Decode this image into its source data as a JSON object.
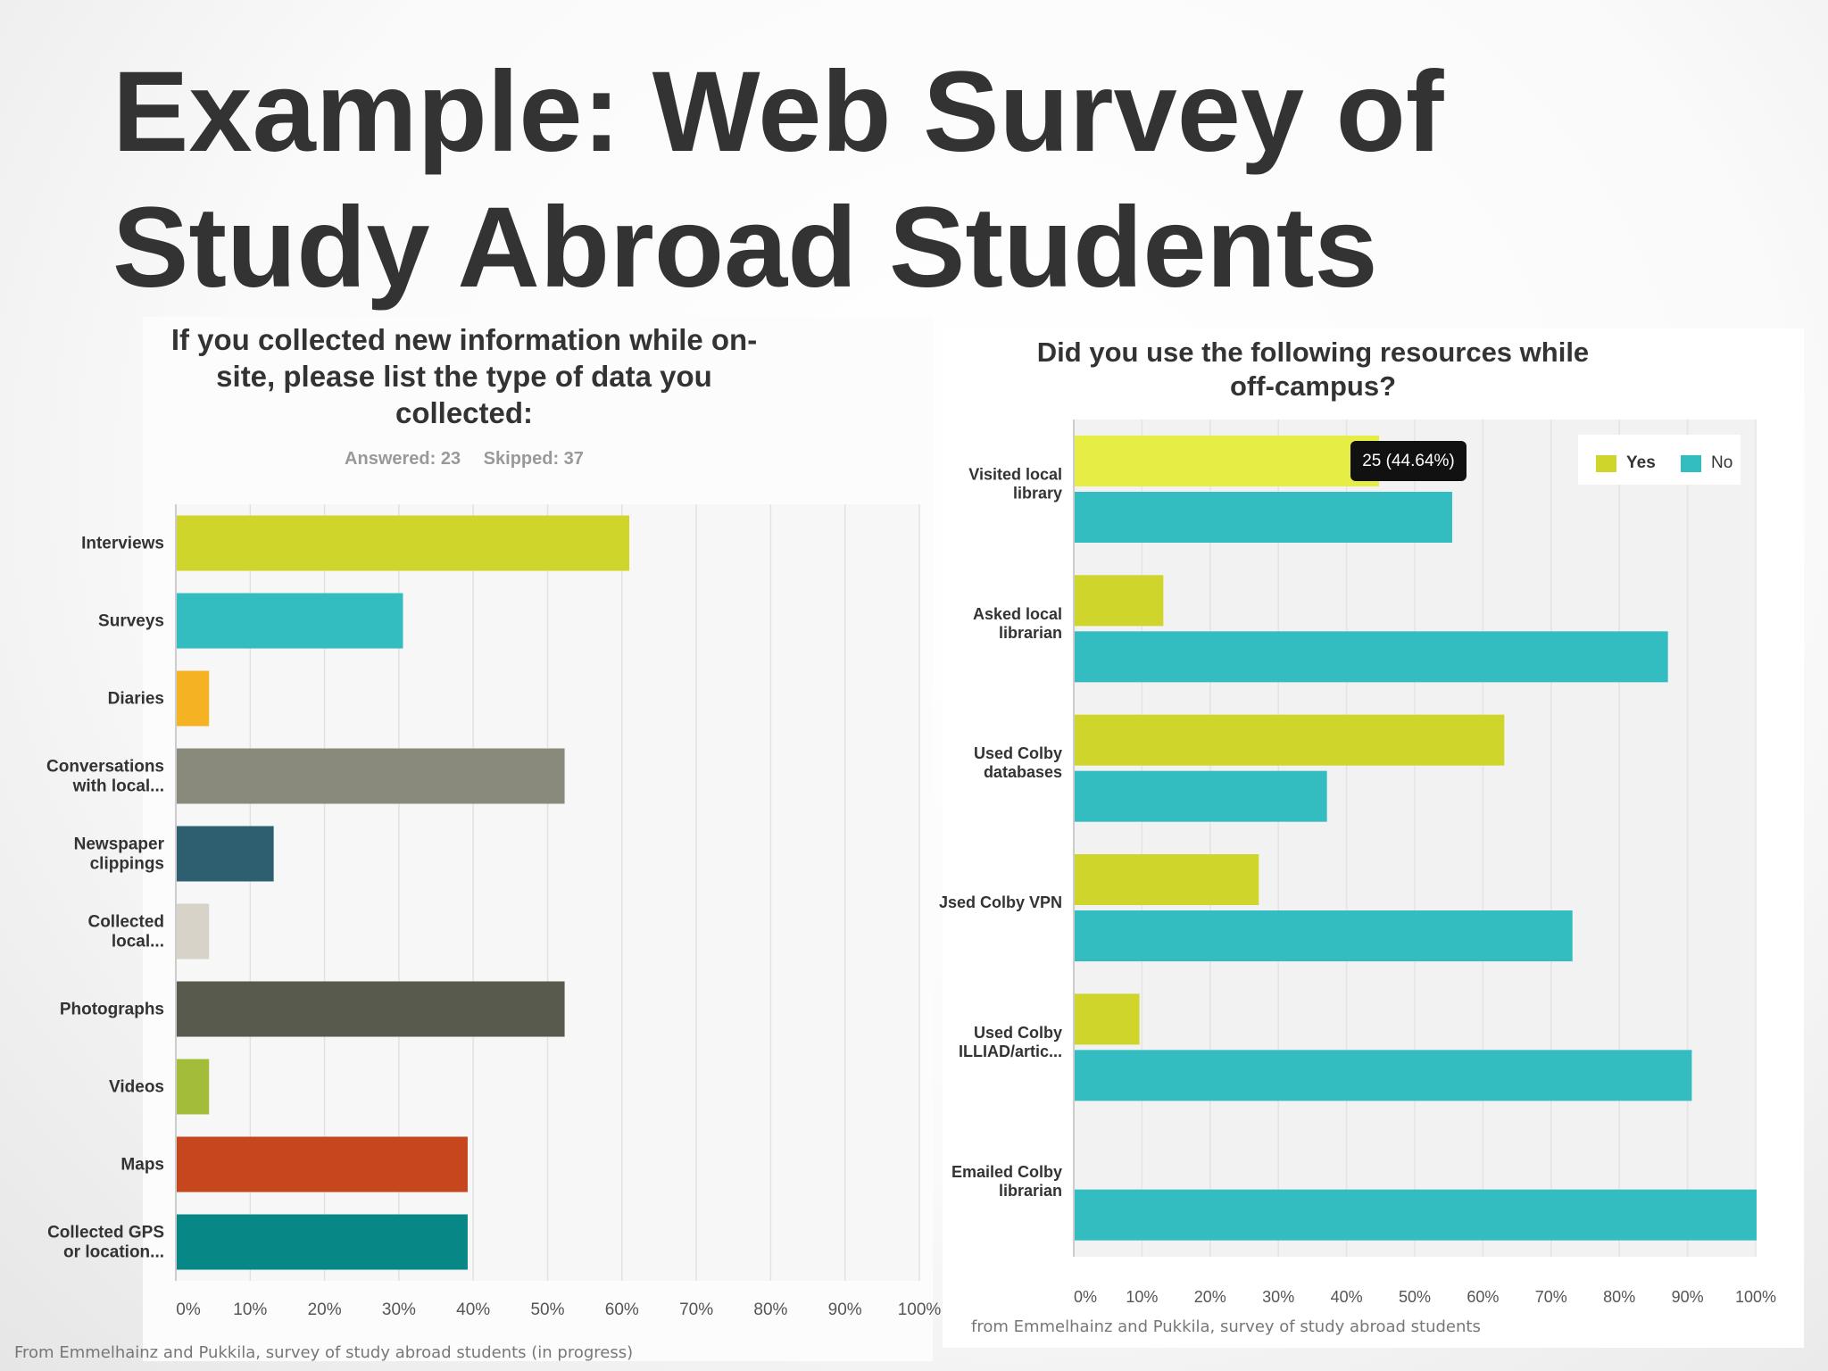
{
  "slide": {
    "title_line1": "Example: Web Survey of",
    "title_line2": "Study Abroad Students"
  },
  "left_chart": {
    "title_line1": "If you collected new information while on-",
    "title_line2": "site, please list the type of data you",
    "title_line3": "collected:",
    "answered": "Answered: 23",
    "skipped": "Skipped: 37",
    "source": "From Emmelhainz and Pukkila, survey of study abroad students (in progress)"
  },
  "right_chart": {
    "title_line1": "Did you use the following resources while",
    "title_line2": "off-campus?",
    "tooltip": "25 (44.64%)",
    "source": "from Emmelhainz and Pukkila, survey of study abroad students"
  },
  "chart_data": [
    {
      "type": "bar",
      "orientation": "horizontal",
      "title": "If you collected new information while on-site, please list the type of data you collected:",
      "categories": [
        [
          "Interviews"
        ],
        [
          "Surveys"
        ],
        [
          "Diaries"
        ],
        [
          "Conversations",
          "with local..."
        ],
        [
          "Newspaper",
          "clippings"
        ],
        [
          "Collected",
          "local..."
        ],
        [
          "Photographs"
        ],
        [
          "Videos"
        ],
        [
          "Maps"
        ],
        [
          "Collected GPS",
          "or location..."
        ]
      ],
      "values": [
        60.87,
        30.43,
        4.35,
        52.17,
        13.04,
        4.35,
        52.17,
        4.35,
        39.13,
        39.13
      ],
      "colors": [
        "#cfd52a",
        "#34bdc0",
        "#f5b324",
        "#8a8a7c",
        "#2e5f70",
        "#d7d3c8",
        "#585a4d",
        "#a3bc3a",
        "#c6471d",
        "#078786"
      ],
      "xlim": [
        0,
        100
      ],
      "ticks": [
        "0%",
        "10%",
        "20%",
        "30%",
        "40%",
        "50%",
        "60%",
        "70%",
        "80%",
        "90%",
        "100%"
      ],
      "grid": true
    },
    {
      "type": "bar",
      "orientation": "horizontal",
      "title": "Did you use the following resources while off-campus?",
      "categories": [
        [
          "Visited local",
          "library"
        ],
        [
          "Asked local",
          "librarian"
        ],
        [
          "Used Colby",
          "databases"
        ],
        [
          "Jsed Colby VPN"
        ],
        [
          "Used Colby",
          "ILLIAD/artic..."
        ],
        [
          "Emailed Colby",
          "librarian"
        ]
      ],
      "series": [
        {
          "name": "Yes",
          "color": "#cfd52a",
          "values": [
            44.64,
            13.0,
            63.0,
            27.0,
            9.5,
            0
          ]
        },
        {
          "name": "No",
          "color": "#34bdc0",
          "values": [
            55.36,
            87.0,
            37.0,
            73.0,
            90.5,
            100.0
          ]
        }
      ],
      "highlight": {
        "series": 0,
        "index": 0,
        "color": "#e6ee46"
      },
      "xlim": [
        0,
        100
      ],
      "ticks": [
        "0%",
        "10%",
        "20%",
        "30%",
        "40%",
        "50%",
        "60%",
        "70%",
        "80%",
        "90%",
        "100%"
      ],
      "grid": true,
      "legend": "top-right"
    }
  ]
}
